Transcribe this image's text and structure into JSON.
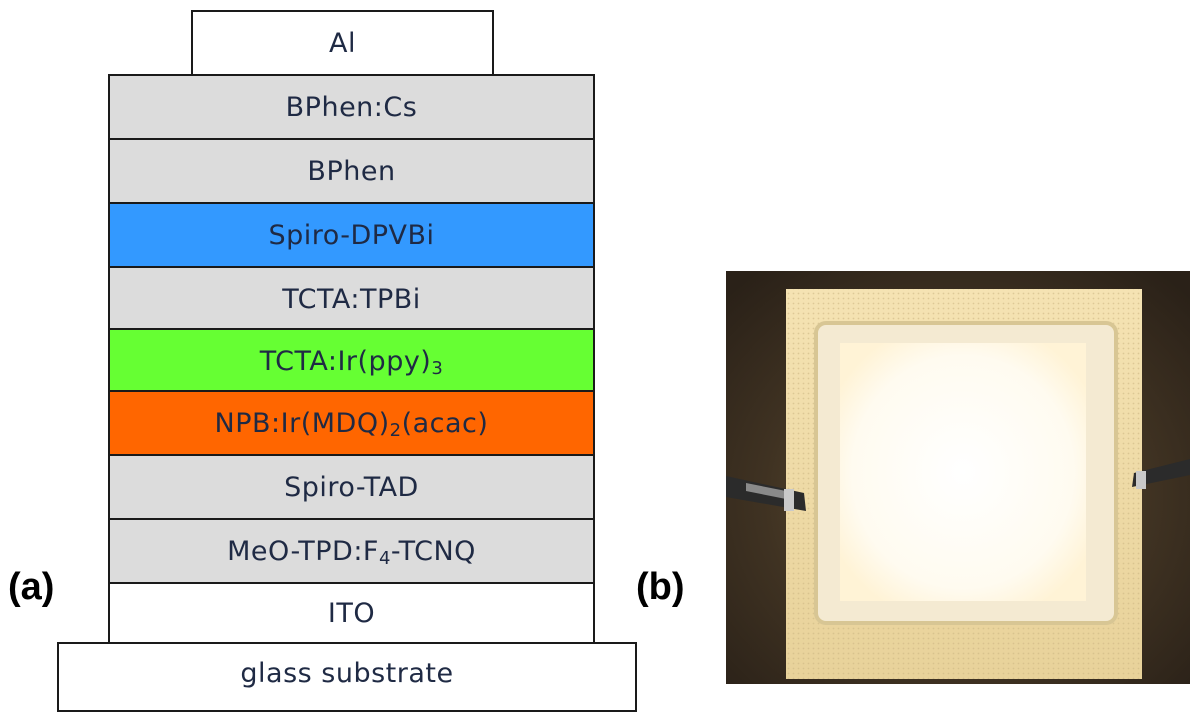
{
  "panel_a": {
    "label": "(a)",
    "layers": [
      {
        "name": "Al",
        "sub": "",
        "tail": "",
        "color": "#ffffff"
      },
      {
        "name": "BPhen:Cs",
        "sub": "",
        "tail": "",
        "color": "#dcdcdc"
      },
      {
        "name": "BPhen",
        "sub": "",
        "tail": "",
        "color": "#dcdcdc"
      },
      {
        "name": "Spiro-DPVBi",
        "sub": "",
        "tail": "",
        "color": "#3399ff"
      },
      {
        "name": "TCTA:TPBi",
        "sub": "",
        "tail": "",
        "color": "#dcdcdc"
      },
      {
        "name": "TCTA:Ir(ppy)",
        "sub": "3",
        "tail": "",
        "color": "#66ff33"
      },
      {
        "name": "NPB:Ir(MDQ)",
        "sub": "2",
        "tail": "(acac)",
        "color": "#ff6600"
      },
      {
        "name": "Spiro-TAD",
        "sub": "",
        "tail": "",
        "color": "#dcdcdc"
      },
      {
        "name": "MeO-TPD:F",
        "sub": "4",
        "tail": "-TCNQ",
        "color": "#dcdcdc"
      },
      {
        "name": "ITO",
        "sub": "",
        "tail": "",
        "color": "#ffffff"
      },
      {
        "name": "glass substrate",
        "sub": "",
        "tail": "",
        "color": "#ffffff"
      }
    ]
  },
  "panel_b": {
    "label": "(b)"
  }
}
